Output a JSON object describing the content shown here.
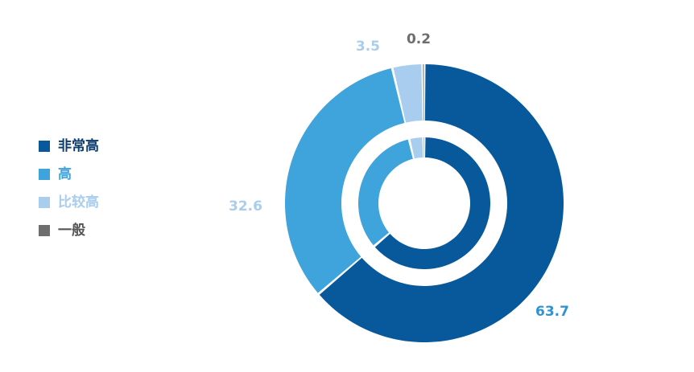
{
  "chart_data": {
    "type": "pie",
    "title": "",
    "categories": [
      "非常高",
      "高",
      "比较高",
      "一般"
    ],
    "values": [
      63.7,
      32.6,
      3.5,
      0.2
    ],
    "value_labels": [
      "63.7",
      "32.6",
      "3.5",
      "0.2"
    ],
    "colors": [
      "#07599c",
      "#3fa3dc",
      "#a9cdee",
      "#6e6e6e"
    ],
    "label_colors": [
      "#2f93d2",
      "#a9cdee",
      "#a9cdee",
      "#6e6e6e"
    ],
    "legend_label_colors": [
      "#0b3d6e",
      "#3fa3dc",
      "#a9cdee",
      "#555555"
    ],
    "legend_position": "left",
    "inner_ring": true
  }
}
